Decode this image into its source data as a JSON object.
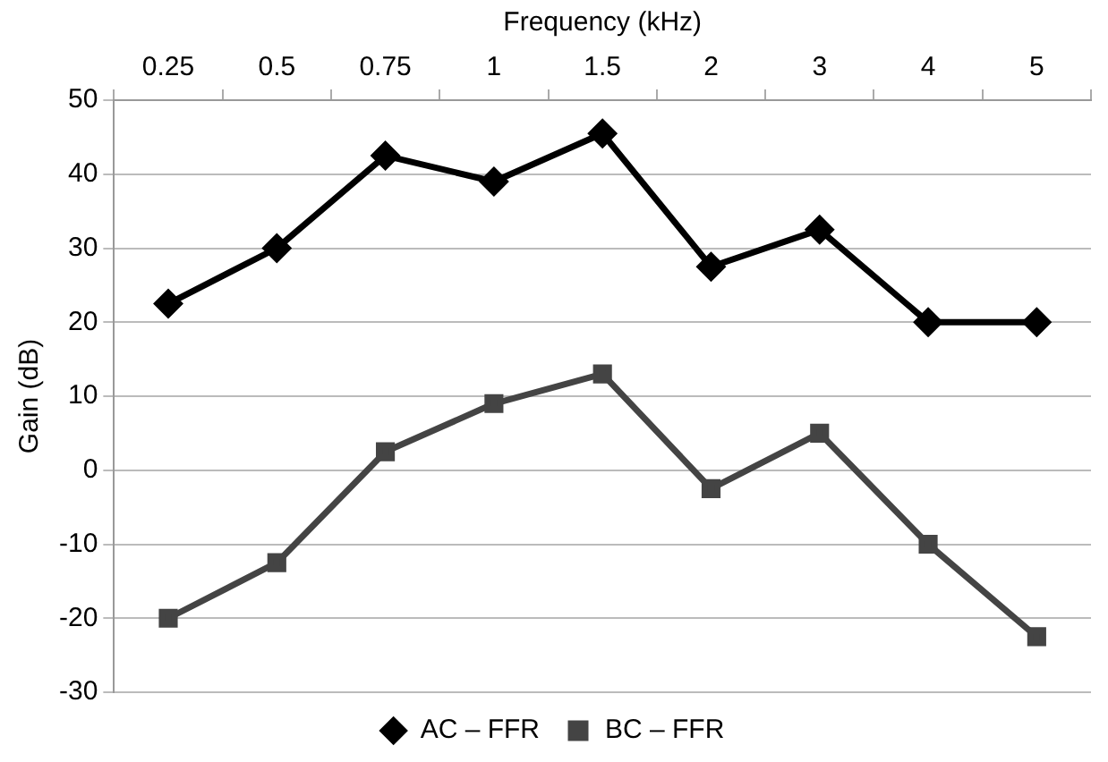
{
  "chart_data": {
    "type": "line",
    "xlabel": "Frequency (kHz)",
    "ylabel": "Gain (dB)",
    "categories": [
      "0.25",
      "0.5",
      "0.75",
      "1",
      "1.5",
      "2",
      "3",
      "4",
      "5"
    ],
    "series": [
      {
        "name": "AC – FFR",
        "color": "#000000",
        "marker": "diamond",
        "values": [
          22.5,
          30,
          42.5,
          39,
          45.5,
          27.5,
          32.5,
          20,
          20
        ]
      },
      {
        "name": "BC – FFR",
        "color": "#444444",
        "marker": "square",
        "values": [
          -20,
          -12.5,
          2.5,
          9,
          13,
          -2.5,
          5,
          -10,
          -22.5
        ]
      }
    ],
    "ylim": [
      -30,
      50
    ],
    "yticks": [
      -30,
      -20,
      -10,
      0,
      10,
      20,
      30,
      40,
      50
    ],
    "grid": "y",
    "legend": "bottom",
    "line_style": "solid"
  }
}
